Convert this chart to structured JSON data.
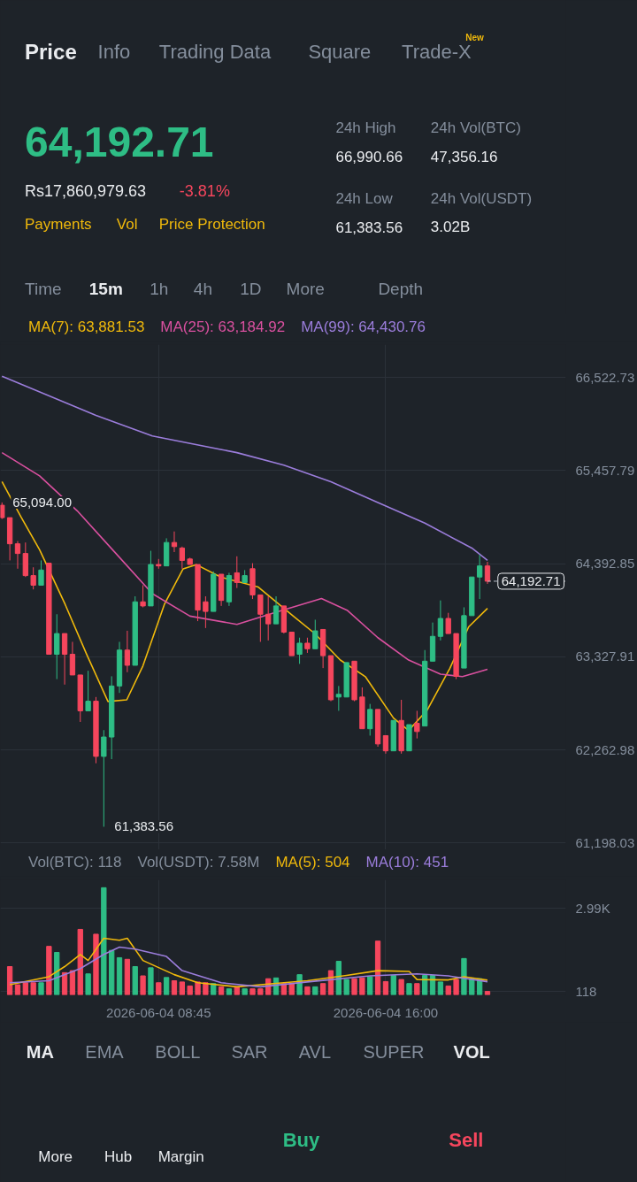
{
  "chart_data": [
    {
      "type": "other",
      "annotations": [
        "Price",
        "Info",
        "Trading Data",
        "Square",
        "Trade-X",
        "New",
        "64,192.71",
        "Rs17,860,979.63",
        "-3.81%",
        "Payments",
        "Vol",
        "Price Protection",
        "24h High",
        "66,990.66",
        "24h Vol(BTC)",
        "47,356.16",
        "24h Low",
        "61,383.56",
        "24h Vol(USDT)",
        "3.02B",
        "Time",
        "15m",
        "1h",
        "4h",
        "1D",
        "More",
        "Depth"
      ]
    },
    {
      "type": "candlestick",
      "x": [
        "2026-06-04T03:45",
        "2026-06-04T04:00",
        "2026-06-04T04:15",
        "2026-06-04T04:30",
        "2026-06-04T04:45",
        "2026-06-04T05:00",
        "2026-06-04T05:15",
        "2026-06-04T05:30",
        "2026-06-04T05:45",
        "2026-06-04T06:00",
        "2026-06-04T06:15",
        "2026-06-04T06:30",
        "2026-06-04T06:45",
        "2026-06-04T07:00",
        "2026-06-04T07:15",
        "2026-06-04T07:30",
        "2026-06-04T07:45",
        "2026-06-04T08:00",
        "2026-06-04T08:15",
        "2026-06-04T08:30",
        "2026-06-04T08:45",
        "2026-06-04T09:00",
        "2026-06-04T09:15",
        "2026-06-04T09:30",
        "2026-06-04T09:45",
        "2026-06-04T10:00",
        "2026-06-04T10:15",
        "2026-06-04T10:30",
        "2026-06-04T10:45",
        "2026-06-04T11:00",
        "2026-06-04T11:15",
        "2026-06-04T11:30",
        "2026-06-04T11:45",
        "2026-06-04T12:00",
        "2026-06-04T12:15",
        "2026-06-04T12:30",
        "2026-06-04T12:45",
        "2026-06-04T13:00",
        "2026-06-04T13:15",
        "2026-06-04T13:30",
        "2026-06-04T13:45",
        "2026-06-04T14:00",
        "2026-06-04T14:15",
        "2026-06-04T14:30",
        "2026-06-04T14:45",
        "2026-06-04T15:00",
        "2026-06-04T15:15",
        "2026-06-04T15:30",
        "2026-06-04T15:45",
        "2026-06-04T16:00",
        "2026-06-04T16:15",
        "2026-06-04T16:30",
        "2026-06-04T16:45",
        "2026-06-04T17:00",
        "2026-06-04T17:15",
        "2026-06-04T17:30",
        "2026-06-04T17:45",
        "2026-06-04T18:00",
        "2026-06-04T18:15",
        "2026-06-04T18:30",
        "2026-06-04T18:45",
        "2026-06-04T19:00",
        "2026-06-04T19:15"
      ],
      "ohlc": [
        [
          65062,
          65094,
          64905,
          64920
        ],
        [
          64920,
          64920,
          64431,
          64621
        ],
        [
          64621,
          64652,
          64336,
          64510
        ],
        [
          64510,
          64636,
          64241,
          64257
        ],
        [
          64257,
          64352,
          64099,
          64147
        ],
        [
          64147,
          64431,
          64147,
          64321
        ],
        [
          64399,
          64399,
          63357,
          63357
        ],
        [
          63357,
          63815,
          63073,
          63594
        ],
        [
          63594,
          63594,
          63010,
          63357
        ],
        [
          63357,
          63499,
          63120,
          63120
        ],
        [
          63120,
          63120,
          62583,
          62710
        ],
        [
          62710,
          63168,
          62710,
          62820
        ],
        [
          62820,
          62868,
          62110,
          62189
        ],
        [
          62189,
          62489,
          61383.56,
          62410
        ],
        [
          62410,
          63105,
          62157,
          62994
        ],
        [
          62994,
          63499,
          62915,
          63405
        ],
        [
          63405,
          63626,
          63152,
          63231
        ],
        [
          63231,
          64020,
          63231,
          63957
        ],
        [
          63957,
          64147,
          63894,
          63910
        ],
        [
          63910,
          64541,
          63910,
          64384
        ],
        [
          64384,
          64447,
          64336,
          64368
        ],
        [
          64368,
          64684,
          64368,
          64636
        ],
        [
          64636,
          64762,
          64526,
          64589
        ],
        [
          64573,
          64589,
          64336,
          64431
        ],
        [
          64447,
          64462,
          64384,
          64384
        ],
        [
          64384,
          64384,
          63736,
          63862
        ],
        [
          63957,
          64020,
          63657,
          63847
        ],
        [
          63847,
          64305,
          63847,
          64273
        ],
        [
          64273,
          64273,
          63910,
          63973
        ],
        [
          63957,
          64289,
          63910,
          64257
        ],
        [
          64289,
          64478,
          64115,
          64178
        ],
        [
          64178,
          64320,
          64178,
          64257
        ],
        [
          64336,
          64399,
          63989,
          64036
        ],
        [
          64036,
          64036,
          63499,
          63815
        ],
        [
          63815,
          64020,
          63515,
          63705
        ],
        [
          63705,
          64020,
          63705,
          63910
        ],
        [
          63910,
          63910,
          63594,
          63610
        ],
        [
          63610,
          63610,
          63341,
          63341
        ],
        [
          63357,
          63547,
          63247,
          63484
        ],
        [
          63484,
          63547,
          63373,
          63420
        ],
        [
          63420,
          63752,
          63420,
          63625
        ],
        [
          63641,
          63641,
          63199,
          63341
        ],
        [
          63341,
          63341,
          62820,
          62836
        ],
        [
          62868,
          62994,
          62710,
          62899
        ],
        [
          62868,
          63262,
          62868,
          63262
        ],
        [
          63278,
          63278,
          62820,
          62836
        ],
        [
          62868,
          62978,
          62505,
          62505
        ],
        [
          62505,
          62789,
          62426,
          62726
        ],
        [
          62726,
          62726,
          62299,
          62331
        ],
        [
          62426,
          62426,
          62220,
          62252
        ],
        [
          62252,
          62600,
          62252,
          62600
        ],
        [
          62600,
          62836,
          62220,
          62252
        ],
        [
          62252,
          62552,
          62252,
          62552
        ],
        [
          62568,
          62710,
          62394,
          62473
        ],
        [
          62536,
          63405,
          62536,
          63278
        ],
        [
          63278,
          63720,
          63278,
          63562
        ],
        [
          63562,
          63973,
          63515,
          63767
        ],
        [
          63767,
          63831,
          63594,
          63594
        ],
        [
          63594,
          63594,
          63073,
          63104
        ],
        [
          63199,
          63894,
          63199,
          63799
        ],
        [
          63799,
          64241,
          63799,
          64241
        ],
        [
          64241,
          64494,
          63989,
          64368
        ],
        [
          64368,
          64415,
          64162,
          64192.71
        ]
      ],
      "colors": [
        "#f6465d",
        "#f6465d",
        "#f6465d",
        "#f6465d",
        "#f6465d",
        "#2ebd85",
        "#f6465d",
        "#2ebd85",
        "#f6465d",
        "#f6465d",
        "#f6465d",
        "#2ebd85",
        "#f6465d",
        "#2ebd85",
        "#2ebd85",
        "#2ebd85",
        "#f6465d",
        "#2ebd85",
        "#f6465d",
        "#2ebd85",
        "#f6465d",
        "#2ebd85",
        "#f6465d",
        "#f6465d",
        "#f6465d",
        "#f6465d",
        "#f6465d",
        "#2ebd85",
        "#f6465d",
        "#2ebd85",
        "#f6465d",
        "#2ebd85",
        "#f6465d",
        "#f6465d",
        "#f6465d",
        "#2ebd85",
        "#f6465d",
        "#f6465d",
        "#2ebd85",
        "#f6465d",
        "#2ebd85",
        "#f6465d",
        "#f6465d",
        "#2ebd85",
        "#2ebd85",
        "#f6465d",
        "#f6465d",
        "#2ebd85",
        "#f6465d",
        "#f6465d",
        "#2ebd85",
        "#f6465d",
        "#2ebd85",
        "#f6465d",
        "#2ebd85",
        "#2ebd85",
        "#2ebd85",
        "#f6465d",
        "#f6465d",
        "#2ebd85",
        "#2ebd85",
        "#2ebd85",
        "#f6465d"
      ],
      "series": [
        {
          "name": "MA(7): 63,881.53",
          "type": "line",
          "color": "#f0b90b",
          "x": [
            "2026-06-04T03:45",
            "2026-06-04T04:21",
            "2026-06-04T04:57",
            "2026-06-04T05:46",
            "2026-06-04T06:27",
            "2026-06-04T07:08",
            "2026-06-04T07:44",
            "2026-06-04T08:15",
            "2026-06-04T08:56",
            "2026-06-04T09:32",
            "2026-06-04T09:57",
            "2026-06-04T10:44",
            "2026-06-04T11:56",
            "2026-06-04T13:03",
            "2026-06-04T13:44",
            "2026-06-04T14:33",
            "2026-06-04T15:21",
            "2026-06-04T16:15",
            "2026-06-04T16:44",
            "2026-06-04T17:20",
            "2026-06-04T18:03",
            "2026-06-04T18:39",
            "2026-06-04T19:15"
          ],
          "values": [
            65332,
            64933,
            64553,
            63927,
            63358,
            62817,
            62836,
            63225,
            63927,
            64335,
            64383,
            64240,
            64126,
            63794,
            63595,
            63291,
            63101,
            62627,
            62485,
            62722,
            63197,
            63671,
            63881.53
          ]
        },
        {
          "name": "MA(25): 63,184.92",
          "type": "line",
          "color": "#d9509f",
          "x": [
            "2026-06-04T03:45",
            "2026-06-04T04:57",
            "2026-06-04T06:09",
            "2026-06-04T07:21",
            "2026-06-04T08:33",
            "2026-06-04T09:45",
            "2026-06-04T11:15",
            "2026-06-04T12:27",
            "2026-06-04T13:57",
            "2026-06-04T14:46",
            "2026-06-04T15:45",
            "2026-06-04T16:44",
            "2026-06-04T17:45",
            "2026-06-04T18:27",
            "2026-06-04T19:15"
          ],
          "values": [
            65664,
            65398,
            64999,
            64525,
            64050,
            63794,
            63699,
            63832,
            63994,
            63861,
            63547,
            63291,
            63130,
            63101,
            63184.92
          ]
        },
        {
          "name": "MA(99): 64,430.76",
          "type": "line",
          "color": "#9b7ddb",
          "x": [
            "2026-06-04T03:45",
            "2026-06-04T06:45",
            "2026-06-04T08:33",
            "2026-06-04T11:15",
            "2026-06-04T12:45",
            "2026-06-04T14:15",
            "2026-06-04T15:45",
            "2026-06-04T17:15",
            "2026-06-04T18:45",
            "2026-06-04T19:15"
          ],
          "values": [
            66537,
            66091,
            65854,
            65664,
            65521,
            65332,
            65094,
            64857,
            64572,
            64430.76
          ]
        }
      ],
      "xlim": [
        "2026-06-04T03:42",
        "2026-06-04T21:45"
      ],
      "xticks": [
        {
          "value": "2026-06-04T08:45",
          "label": null
        },
        {
          "value": "2026-06-04T16:00",
          "label": null
        }
      ],
      "ylim": [
        61120,
        66900
      ],
      "yticks": [
        {
          "value": 61198.03,
          "label": "61,198.03"
        },
        {
          "value": 62262.98,
          "label": "62,262.98"
        },
        {
          "value": 63327.91,
          "label": "63,327.91"
        },
        {
          "value": 64392.85,
          "label": "64,392.85"
        },
        {
          "value": 65457.79,
          "label": "65,457.79"
        },
        {
          "value": 66522.73,
          "label": "66,522.73"
        }
      ],
      "tick_labels": "y",
      "grid": true,
      "legend": "top",
      "ref_lines": [
        {
          "axis": "y",
          "value": 64192.71,
          "label": "64,192.71",
          "line_style": "dashed",
          "color": "#b7bdc6"
        }
      ],
      "annotations": [
        {
          "text": "65,094.00",
          "x": "2026-06-04T03:45",
          "y": 65094
        },
        {
          "text": "61,383.56",
          "x": "2026-06-04T07:00",
          "y": 61383.56
        }
      ]
    },
    {
      "type": "bar",
      "x": [
        "2026-06-04T04:00",
        "2026-06-04T04:15",
        "2026-06-04T04:30",
        "2026-06-04T04:45",
        "2026-06-04T05:00",
        "2026-06-04T05:15",
        "2026-06-04T05:30",
        "2026-06-04T05:45",
        "2026-06-04T06:00",
        "2026-06-04T06:15",
        "2026-06-04T06:30",
        "2026-06-04T06:45",
        "2026-06-04T07:00",
        "2026-06-04T07:15",
        "2026-06-04T07:30",
        "2026-06-04T07:45",
        "2026-06-04T08:00",
        "2026-06-04T08:15",
        "2026-06-04T08:30",
        "2026-06-04T08:45",
        "2026-06-04T09:00",
        "2026-06-04T09:15",
        "2026-06-04T09:30",
        "2026-06-04T09:45",
        "2026-06-04T10:00",
        "2026-06-04T10:15",
        "2026-06-04T10:30",
        "2026-06-04T10:45",
        "2026-06-04T11:00",
        "2026-06-04T11:15",
        "2026-06-04T11:30",
        "2026-06-04T11:45",
        "2026-06-04T12:00",
        "2026-06-04T12:15",
        "2026-06-04T12:30",
        "2026-06-04T12:45",
        "2026-06-04T13:00",
        "2026-06-04T13:15",
        "2026-06-04T13:30",
        "2026-06-04T13:45",
        "2026-06-04T14:00",
        "2026-06-04T14:15",
        "2026-06-04T14:30",
        "2026-06-04T14:45",
        "2026-06-04T15:00",
        "2026-06-04T15:15",
        "2026-06-04T15:30",
        "2026-06-04T15:45",
        "2026-06-04T16:00",
        "2026-06-04T16:15",
        "2026-06-04T16:30",
        "2026-06-04T16:45",
        "2026-06-04T17:00",
        "2026-06-04T17:15",
        "2026-06-04T17:30",
        "2026-06-04T17:45",
        "2026-06-04T18:00",
        "2026-06-04T18:15",
        "2026-06-04T18:30",
        "2026-06-04T18:45",
        "2026-06-04T19:00",
        "2026-06-04T19:15"
      ],
      "values": [
        972,
        347,
        417,
        417,
        417,
        1667,
        1458,
        764,
        833,
        2250,
        722,
        2084,
        3681,
        1528,
        1278,
        1222,
        972,
        653,
        931,
        417,
        597,
        486,
        444,
        306,
        444,
        417,
        389,
        278,
        208,
        278,
        208,
        208,
        208,
        556,
        583,
        389,
        389,
        695,
        278,
        278,
        389,
        833,
        1153,
        528,
        556,
        583,
        625,
        1847,
        458,
        667,
        528,
        389,
        389,
        667,
        667,
        444,
        306,
        528,
        1250,
        556,
        556,
        118
      ],
      "colors": [
        "#f6465d",
        "#f6465d",
        "#f6465d",
        "#f6465d",
        "#2ebd85",
        "#f6465d",
        "#2ebd85",
        "#f6465d",
        "#f6465d",
        "#f6465d",
        "#2ebd85",
        "#f6465d",
        "#2ebd85",
        "#2ebd85",
        "#2ebd85",
        "#f6465d",
        "#2ebd85",
        "#f6465d",
        "#2ebd85",
        "#f6465d",
        "#2ebd85",
        "#f6465d",
        "#f6465d",
        "#f6465d",
        "#f6465d",
        "#f6465d",
        "#2ebd85",
        "#f6465d",
        "#2ebd85",
        "#f6465d",
        "#2ebd85",
        "#f6465d",
        "#f6465d",
        "#f6465d",
        "#2ebd85",
        "#f6465d",
        "#f6465d",
        "#2ebd85",
        "#f6465d",
        "#2ebd85",
        "#f6465d",
        "#f6465d",
        "#2ebd85",
        "#2ebd85",
        "#f6465d",
        "#f6465d",
        "#2ebd85",
        "#f6465d",
        "#f6465d",
        "#2ebd85",
        "#f6465d",
        "#2ebd85",
        "#f6465d",
        "#2ebd85",
        "#2ebd85",
        "#2ebd85",
        "#f6465d",
        "#f6465d",
        "#2ebd85",
        "#2ebd85",
        "#2ebd85",
        "#f6465d"
      ],
      "series": [
        {
          "name": "MA(5): 504",
          "type": "line",
          "color": "#f0b90b",
          "x": [
            "2026-06-04T04:00",
            "2026-06-04T05:15",
            "2026-06-04T05:45",
            "2026-06-04T06:15",
            "2026-06-04T06:30",
            "2026-06-04T07:00",
            "2026-06-04T07:30",
            "2026-06-04T07:45",
            "2026-06-04T08:15",
            "2026-06-04T09:15",
            "2026-06-04T10:00",
            "2026-06-04T11:15",
            "2026-06-04T12:45",
            "2026-06-04T13:30",
            "2026-06-04T14:45",
            "2026-06-04T15:45",
            "2026-06-04T16:45",
            "2026-06-04T17:00",
            "2026-06-04T18:00",
            "2026-06-04T18:30",
            "2026-06-04T19:15"
          ],
          "values": [
            347,
            625,
            972,
            1389,
            1181,
            1945,
            1875,
            1945,
            1181,
            695,
            417,
            278,
            417,
            486,
            667,
            833,
            806,
            528,
            514,
            625,
            504
          ]
        },
        {
          "name": "MA(10): 451",
          "type": "line",
          "color": "#9b7ddb",
          "x": [
            "2026-06-04T04:00",
            "2026-06-04T05:15",
            "2026-06-04T06:15",
            "2026-06-04T07:00",
            "2026-06-04T07:30",
            "2026-06-04T08:00",
            "2026-06-04T09:00",
            "2026-06-04T09:30",
            "2026-06-04T10:45",
            "2026-06-04T12:00",
            "2026-06-04T13:30",
            "2026-06-04T15:30",
            "2026-06-04T17:00",
            "2026-06-04T18:00",
            "2026-06-04T19:15"
          ],
          "values": [
            417,
            486,
            903,
            1389,
            1639,
            1570,
            1320,
            833,
            417,
            278,
            444,
            653,
            722,
            653,
            451
          ]
        }
      ],
      "xlim": [
        "2026-06-04T03:42",
        "2026-06-04T21:45"
      ],
      "xticks": [
        {
          "value": "2026-06-04T08:45",
          "label": "2026-06-04 08:45"
        },
        {
          "value": "2026-06-04T16:00",
          "label": "2026-06-04 16:00"
        }
      ],
      "ylim": [
        0,
        3950
      ],
      "yticks": [
        118,
        {
          "value": 2990,
          "label": "2.99K"
        }
      ],
      "grid": true,
      "legend": "top",
      "annotations": [
        "Vol(BTC): 118",
        "Vol(USDT): 7.58M"
      ]
    },
    {
      "type": "other",
      "annotations": [
        "MA",
        "EMA",
        "BOLL",
        "SAR",
        "AVL",
        "SUPER",
        "VOL",
        "More",
        "Hub",
        "Margin",
        "Buy",
        "Sell"
      ]
    }
  ]
}
